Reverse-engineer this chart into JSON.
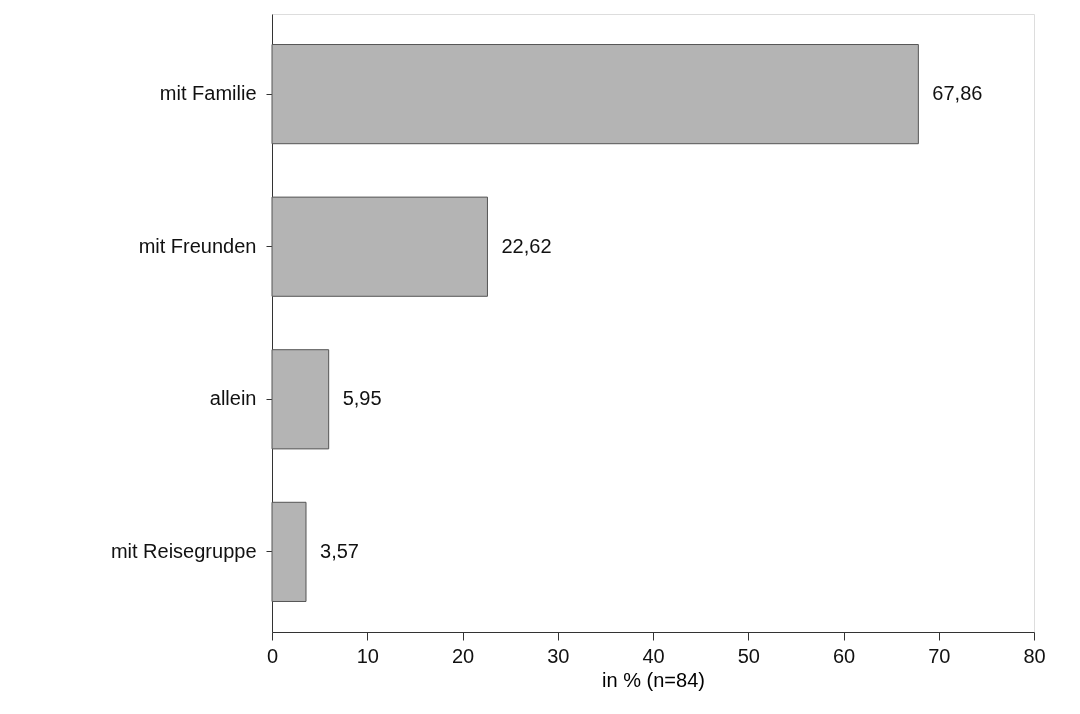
{
  "chart_data": {
    "type": "bar",
    "orientation": "horizontal",
    "xlabel": "in % (n=84)",
    "categories": [
      "mit Familie",
      "mit Freunden",
      "allein",
      "mit Reisegruppe"
    ],
    "values": [
      67.86,
      22.62,
      5.95,
      3.57
    ],
    "value_labels": [
      "67,86",
      "22,62",
      "5,95",
      "3,57"
    ],
    "color": "#b4b4b4",
    "xlim": [
      0,
      80
    ],
    "xticks": [
      0,
      10,
      20,
      30,
      40,
      50,
      60,
      70,
      80
    ],
    "grid": false
  }
}
